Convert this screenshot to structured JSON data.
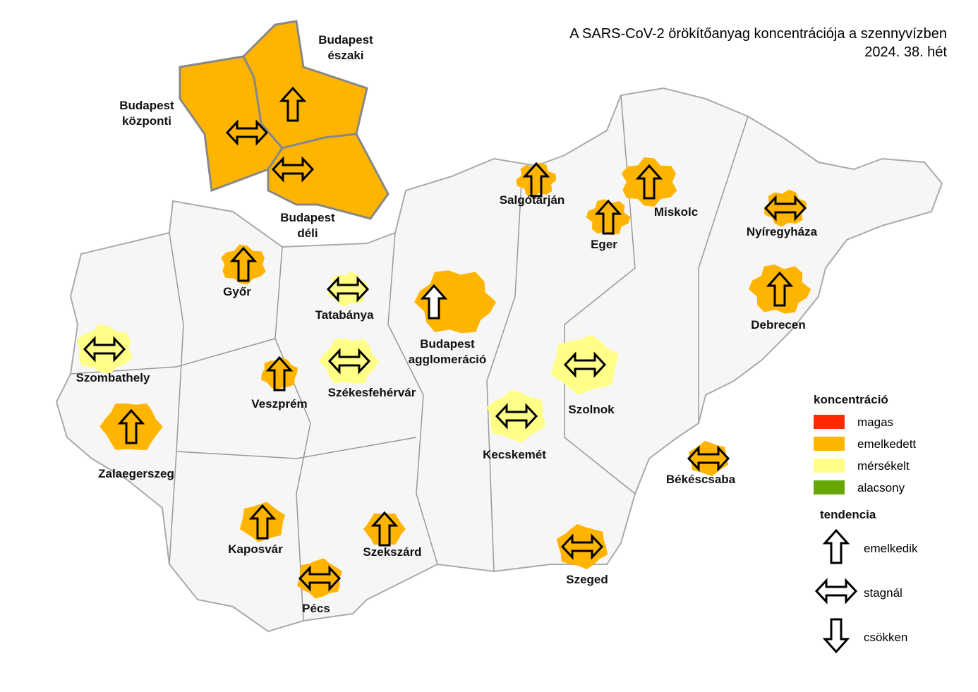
{
  "title": "A SARS-CoV-2 örökítőanyag koncentrációja a szennyvízben",
  "subtitle": "2024. 38. hét",
  "legend": {
    "concentration_title": "koncentráció",
    "levels": [
      {
        "label": "magas",
        "color": "#ff2a00"
      },
      {
        "label": "emelkedett",
        "color": "#ffb400"
      },
      {
        "label": "mérsékelt",
        "color": "#ffff88"
      },
      {
        "label": "alacsony",
        "color": "#66a800"
      }
    ],
    "trend_title": "tendencia",
    "trends": [
      {
        "label": "emelkedik",
        "shape": "up"
      },
      {
        "label": "stagnál",
        "shape": "both"
      },
      {
        "label": "csökken",
        "shape": "down"
      }
    ]
  },
  "sites": [
    {
      "label": "Budapest északi",
      "level": "emelkedett",
      "trend": "emelkedik"
    },
    {
      "label": "Budapest központi",
      "level": "emelkedett",
      "trend": "stagnál"
    },
    {
      "label": "Budapest déli",
      "level": "emelkedett",
      "trend": "stagnál"
    },
    {
      "label": "Salgótarján",
      "level": "emelkedett",
      "trend": "emelkedik"
    },
    {
      "label": "Eger",
      "level": "emelkedett",
      "trend": "emelkedik"
    },
    {
      "label": "Miskolc",
      "level": "emelkedett",
      "trend": "emelkedik"
    },
    {
      "label": "Nyíregyháza",
      "level": "emelkedett",
      "trend": "stagnál"
    },
    {
      "label": "Debrecen",
      "level": "emelkedett",
      "trend": "emelkedik"
    },
    {
      "label": "Győr",
      "level": "emelkedett",
      "trend": "emelkedik"
    },
    {
      "label": "Tatabánya",
      "level": "mérsékelt",
      "trend": "stagnál"
    },
    {
      "label": "Budapest agglomeráció",
      "level": "emelkedett",
      "trend": "emelkedik"
    },
    {
      "label": "Szombathely",
      "level": "mérsékelt",
      "trend": "stagnál"
    },
    {
      "label": "Veszprém",
      "level": "emelkedett",
      "trend": "emelkedik"
    },
    {
      "label": "Székesfehérvár",
      "level": "mérsékelt",
      "trend": "stagnál"
    },
    {
      "label": "Kecskemét",
      "level": "mérsékelt",
      "trend": "stagnál"
    },
    {
      "label": "Szolnok",
      "level": "mérsékelt",
      "trend": "stagnál"
    },
    {
      "label": "Zalaegerszeg",
      "level": "emelkedett",
      "trend": "emelkedik"
    },
    {
      "label": "Békéscsaba",
      "level": "emelkedett",
      "trend": "stagnál"
    },
    {
      "label": "Kaposvár",
      "level": "emelkedett",
      "trend": "emelkedik"
    },
    {
      "label": "Szekszárd",
      "level": "emelkedett",
      "trend": "emelkedik"
    },
    {
      "label": "Szeged",
      "level": "emelkedett",
      "trend": "stagnál"
    },
    {
      "label": "Pécs",
      "level": "emelkedett",
      "trend": "stagnál"
    }
  ]
}
